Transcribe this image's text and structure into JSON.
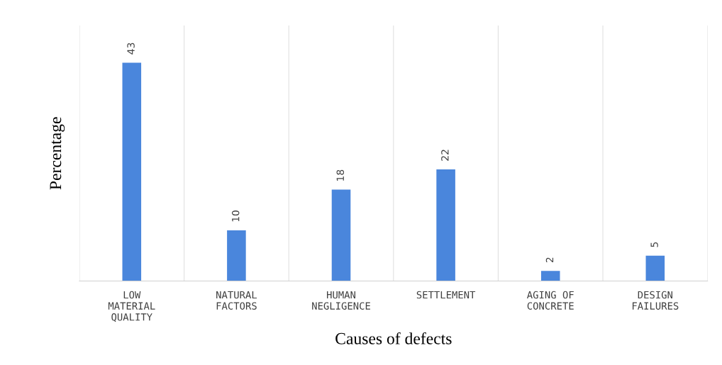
{
  "chart_data": {
    "type": "bar",
    "xlabel": "Causes of defects",
    "ylabel": "Percentage",
    "categories": [
      "LOW\nMATERIAL\nQUALITY",
      "NATURAL\nFACTORS",
      "HUMAN\nNEGLIGENCE",
      "SETTLEMENT",
      "AGING OF\nCONCRETE",
      "DESIGN\nFAILURES"
    ],
    "values": [
      43,
      10,
      18,
      22,
      2,
      5
    ],
    "color": "#4a86dc",
    "data_labels": true,
    "grid": "x",
    "tick_labels": "x"
  }
}
